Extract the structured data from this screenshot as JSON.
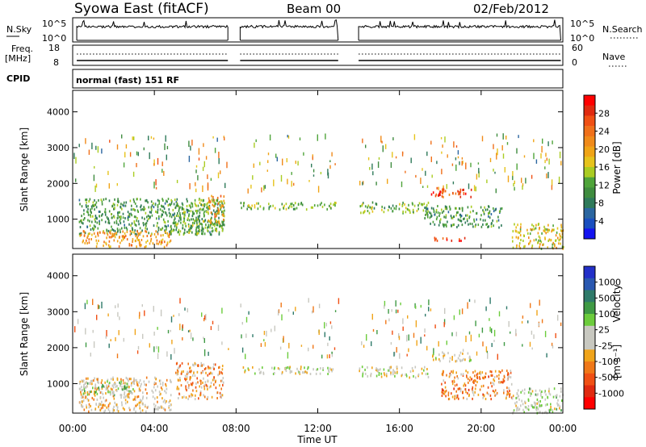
{
  "header": {
    "station": "Syowa East (fitACF)",
    "beam": "Beam 00",
    "date": "02/Feb/2012"
  },
  "strips": {
    "nsky_label": "N.Sky",
    "nsky_top_tick": "10^5",
    "nsky_bottom_tick": "10^0",
    "nsearch_label": "N.Search",
    "nsearch_top_tick": "10^5",
    "nsearch_bottom_tick": "10^0",
    "freq_label": "Freq.",
    "freq_unit": "[MHz]",
    "freq_top_tick": "18",
    "freq_bottom_tick": "8",
    "nave_label": "Nave",
    "nave_top_tick": "60",
    "nave_bottom_tick": "0",
    "cpid_label": "CPID",
    "cpid_text": "normal (fast) 151 RF"
  },
  "colorbars": {
    "power": {
      "label": "Power [dB]",
      "ticks": [
        "4",
        "8",
        "12",
        "16",
        "20",
        "24",
        "28"
      ],
      "colors": [
        "#1414f0",
        "#1a4fbf",
        "#2b66a0",
        "#2f7a5a",
        "#3f8c3f",
        "#4fa43a",
        "#aacc22",
        "#e6c31c",
        "#f0a416",
        "#f08a1a",
        "#f0701a",
        "#f05014",
        "#e02a10",
        "#ff0000"
      ]
    },
    "velocity": {
      "label": "Velocity",
      "unit": "[m s⁻¹]",
      "ticks": [
        "1000",
        "500",
        "100",
        "25",
        "-25",
        "-100",
        "-500",
        "-1000"
      ],
      "colors": [
        "#2330c8",
        "#2a58b0",
        "#2f7a6a",
        "#3f9a44",
        "#6ccc3c",
        "#c8c8c0",
        "#c8c8c0",
        "#f0a41a",
        "#f07818",
        "#f05014",
        "#e02a10",
        "#ff0000"
      ]
    }
  },
  "axes": {
    "y_label": "Slant Range [km]",
    "y_ticks": [
      "1000",
      "2000",
      "3000",
      "4000"
    ],
    "x_label": "Time UT",
    "x_ticks": [
      "00:00",
      "04:00",
      "08:00",
      "12:00",
      "16:00",
      "20:00",
      "00:00"
    ]
  },
  "chart_data": [
    {
      "type": "heatmap",
      "title": "Power",
      "x": "Time UT (hours)",
      "xlim": [
        0,
        24
      ],
      "ylabel": "Slant Range [km]",
      "ylim": [
        180,
        4600
      ],
      "zlabel": "Power [dB]",
      "zlim": [
        0,
        30
      ],
      "data_gaps_hours": [
        [
          7.6,
          8.2
        ],
        [
          13.0,
          14.0
        ]
      ],
      "echo_regions": [
        {
          "t0": 0.3,
          "t1": 7.4,
          "r0": 600,
          "r1": 1600,
          "value": 10
        },
        {
          "t0": 0.3,
          "t1": 4.8,
          "r0": 250,
          "r1": 700,
          "value": 20
        },
        {
          "t0": 5.0,
          "t1": 7.4,
          "r0": 600,
          "r1": 1500,
          "value": 12
        },
        {
          "t0": 6.6,
          "t1": 7.4,
          "r0": 900,
          "r1": 1700,
          "value": 20
        },
        {
          "t0": 8.2,
          "t1": 13.0,
          "r0": 1300,
          "r1": 1500,
          "value": 12
        },
        {
          "t0": 14.0,
          "t1": 17.4,
          "r0": 1200,
          "r1": 1500,
          "value": 12
        },
        {
          "t0": 17.4,
          "t1": 19.5,
          "r0": 1650,
          "r1": 1900,
          "value": 25
        },
        {
          "t0": 17.2,
          "t1": 21.0,
          "r0": 800,
          "r1": 1400,
          "value": 10
        },
        {
          "t0": 17.5,
          "t1": 19.2,
          "r0": 420,
          "r1": 520,
          "value": 26
        },
        {
          "t0": 21.5,
          "t1": 24.0,
          "r0": 200,
          "r1": 900,
          "value": 16
        }
      ]
    },
    {
      "type": "heatmap",
      "title": "Velocity",
      "x": "Time UT (hours)",
      "xlim": [
        0,
        24
      ],
      "ylabel": "Slant Range [km]",
      "ylim": [
        180,
        4600
      ],
      "zlabel": "Velocity [m s-1]",
      "zlim": [
        -1000,
        1000
      ],
      "data_gaps_hours": [
        [
          7.6,
          8.2
        ],
        [
          13.0,
          14.0
        ]
      ],
      "echo_regions": [
        {
          "t0": 0.3,
          "t1": 4.8,
          "r0": 250,
          "r1": 1200,
          "value": -150
        },
        {
          "t0": 0.3,
          "t1": 3.0,
          "r0": 700,
          "r1": 1100,
          "value": 150
        },
        {
          "t0": 5.0,
          "t1": 7.4,
          "r0": 600,
          "r1": 1600,
          "value": -300
        },
        {
          "t0": 8.2,
          "t1": 13.0,
          "r0": 1300,
          "r1": 1500,
          "value": 0
        },
        {
          "t0": 14.0,
          "t1": 17.4,
          "r0": 1200,
          "r1": 1500,
          "value": 0
        },
        {
          "t0": 17.4,
          "t1": 19.5,
          "r0": 1650,
          "r1": 1900,
          "value": 0
        },
        {
          "t0": 18.0,
          "t1": 21.5,
          "r0": 600,
          "r1": 1400,
          "value": -400
        },
        {
          "t0": 21.5,
          "t1": 24.0,
          "r0": 200,
          "r1": 900,
          "value": 80
        }
      ]
    }
  ]
}
